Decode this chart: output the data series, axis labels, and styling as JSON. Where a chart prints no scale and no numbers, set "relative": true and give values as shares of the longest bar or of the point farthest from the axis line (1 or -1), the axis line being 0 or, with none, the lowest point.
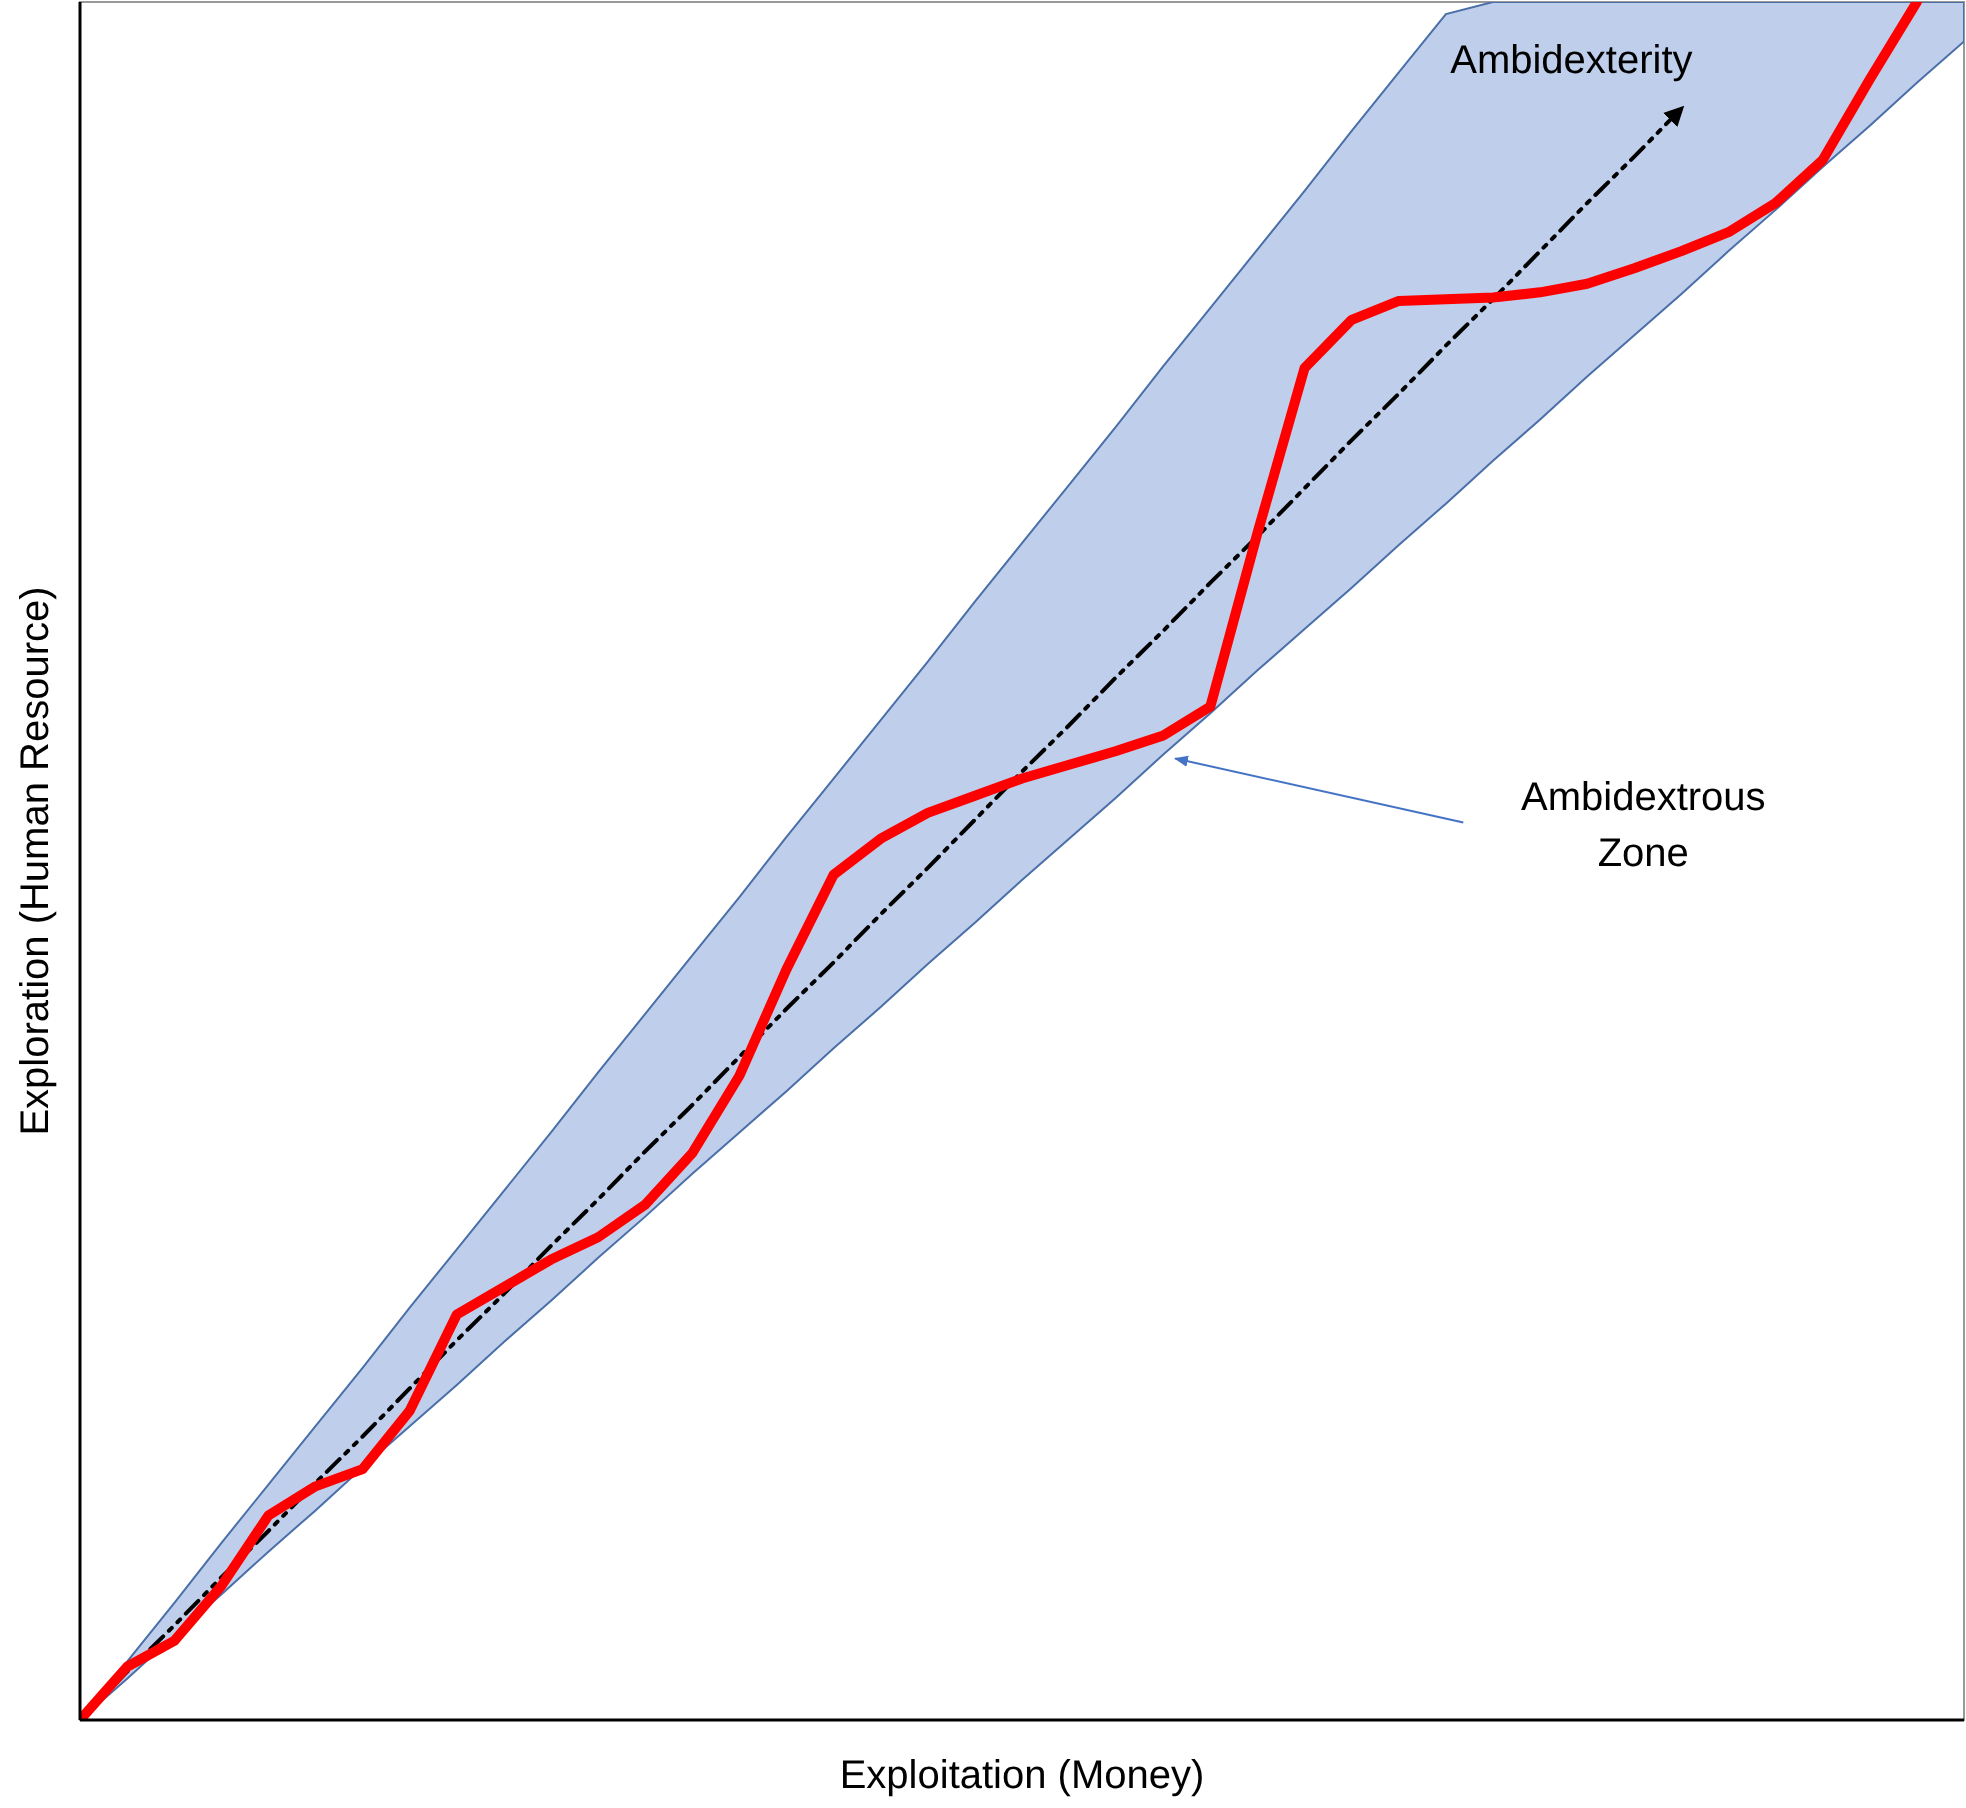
{
  "chart_data": {
    "type": "line",
    "relative": true,
    "xlabel": "Exploitation (Money)",
    "ylabel": "Exploration (Human Resource)",
    "categories": [
      null,
      null,
      null,
      null,
      null,
      null,
      null,
      null,
      null,
      null,
      null,
      null,
      null,
      null,
      null,
      null,
      null,
      null,
      null,
      null,
      null,
      null,
      null,
      null,
      null,
      null,
      null,
      null,
      null,
      null,
      null,
      null,
      null,
      null,
      null,
      null,
      null,
      null,
      null,
      null,
      null
    ],
    "series": [
      {
        "color": "#000000",
        "line_style": "dashed",
        "values": [
          0,
          0.028,
          0.055,
          0.083,
          0.11,
          0.138,
          0.165,
          0.193,
          0.221,
          0.248,
          0.276,
          0.303,
          0.331,
          0.358,
          0.386,
          0.414,
          0.441,
          0.469,
          0.496,
          0.524,
          0.552,
          0.579,
          0.607,
          0.634,
          0.662,
          0.689,
          0.717,
          0.745,
          0.772,
          0.8,
          0.827,
          0.855,
          0.883,
          0.91,
          0.938,
          null,
          null,
          null,
          null,
          null,
          null
        ],
        "upper": [
          0,
          0.034,
          0.068,
          0.103,
          0.137,
          0.171,
          0.205,
          0.24,
          0.274,
          0.308,
          0.342,
          0.377,
          0.411,
          0.445,
          0.479,
          0.514,
          0.548,
          0.582,
          0.616,
          0.651,
          0.685,
          0.719,
          0.753,
          0.788,
          0.822,
          0.856,
          0.89,
          0.925,
          0.959,
          0.993,
          1,
          1,
          1,
          1,
          1,
          1,
          1,
          1,
          1,
          1,
          1
        ],
        "lower": [
          0,
          0.024,
          0.049,
          0.073,
          0.098,
          0.122,
          0.147,
          0.171,
          0.195,
          0.22,
          0.244,
          0.269,
          0.293,
          0.318,
          0.342,
          0.366,
          0.391,
          0.415,
          0.44,
          0.464,
          0.489,
          0.513,
          0.537,
          0.562,
          0.586,
          0.611,
          0.635,
          0.659,
          0.684,
          0.708,
          0.733,
          0.757,
          0.782,
          0.806,
          0.83,
          0.855,
          0.879,
          0.904,
          0.928,
          0.953,
          0.977
        ]
      },
      {
        "color": "#ff0000",
        "line_style": "solid",
        "values": [
          0,
          0.031,
          0.046,
          0.078,
          0.119,
          0.136,
          0.146,
          0.18,
          0.236,
          0.252,
          0.268,
          0.281,
          0.3,
          0.33,
          0.375,
          0.437,
          0.492,
          0.513,
          0.528,
          0.538,
          0.548,
          0.556,
          0.564,
          0.573,
          0.59,
          0.691,
          0.787,
          0.815,
          0.826,
          0.827,
          0.828,
          0.831,
          0.836,
          0.845,
          0.855,
          0.866,
          0.883,
          0.908,
          0.955,
          1,
          null
        ]
      }
    ],
    "annotations": [
      "Ambidexterity",
      "Ambidextrous Zone"
    ]
  }
}
